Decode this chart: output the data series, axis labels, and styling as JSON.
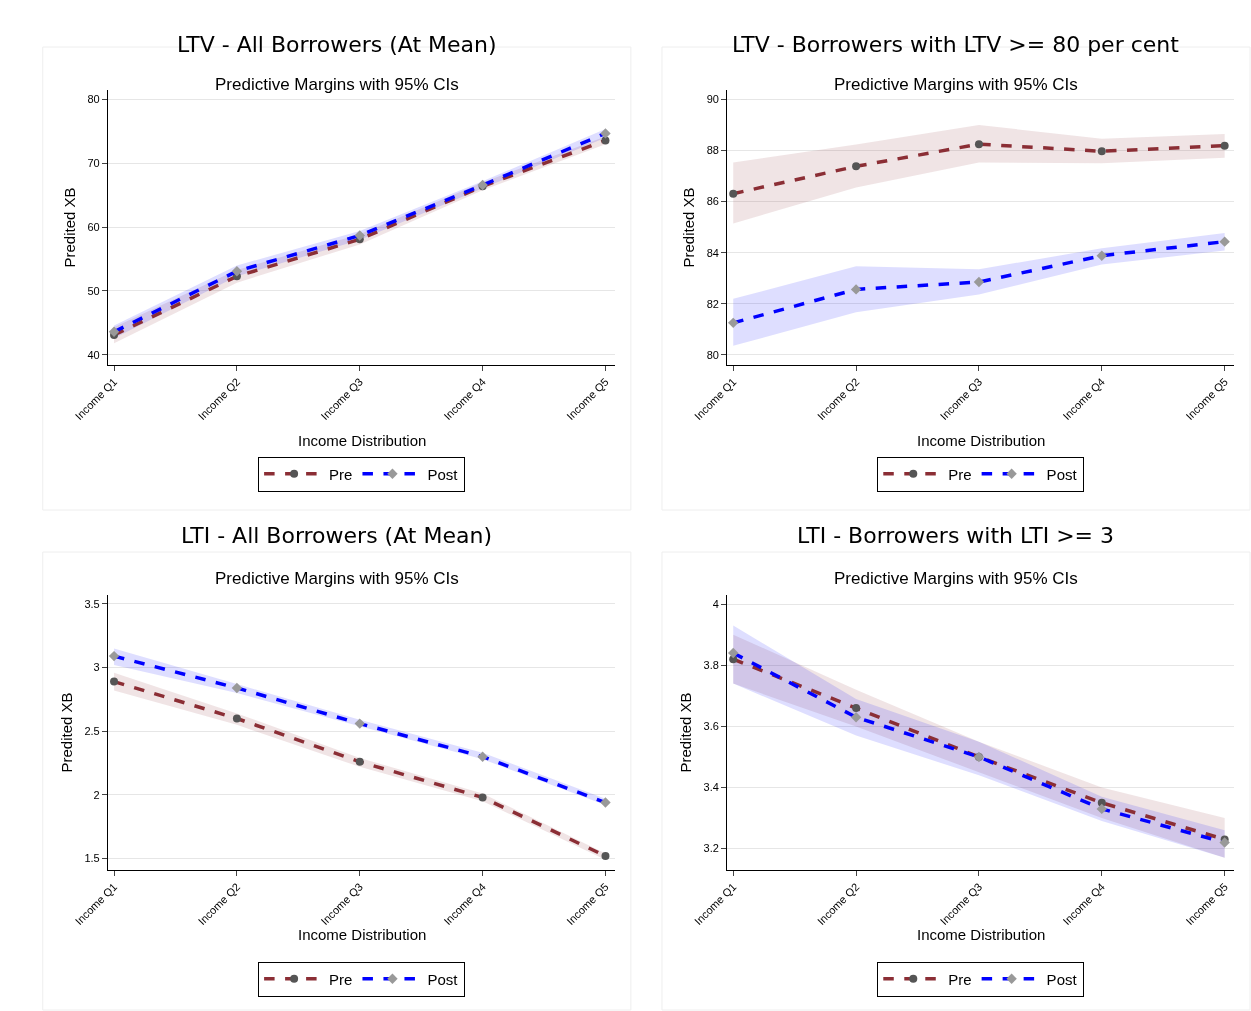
{
  "chart_data": [
    {
      "type": "line",
      "title": "LTV - All Borrowers (At Mean)",
      "subtitle": "Predictive Margins with 95% CIs",
      "xlabel": "Income Distribution",
      "ylabel": "Predited XB",
      "categories": [
        "Income Q1",
        "Income Q2",
        "Income Q3",
        "Income Q4",
        "Income Q5"
      ],
      "series": [
        {
          "name": "Pre",
          "color": "#8b2e35",
          "marker": "circle",
          "values": [
            43.1,
            52.3,
            58.1,
            66.4,
            73.6
          ],
          "lower": [
            41.8,
            51.3,
            57.3,
            65.8,
            73.0
          ],
          "upper": [
            44.3,
            53.3,
            58.9,
            67.0,
            74.2
          ]
        },
        {
          "name": "Post",
          "color": "#0000ff",
          "marker": "diamond",
          "values": [
            43.6,
            53.1,
            58.7,
            66.6,
            74.7
          ],
          "lower": [
            42.6,
            52.3,
            58.0,
            66.1,
            74.0
          ],
          "upper": [
            44.6,
            54.0,
            59.4,
            67.2,
            75.4
          ]
        }
      ],
      "ylim": [
        38.4,
        81.5
      ],
      "yticks": [
        40,
        50,
        60,
        70,
        80
      ],
      "grid": "y",
      "legend": "bottom",
      "line_style": "dashed"
    },
    {
      "type": "line",
      "title": "LTV - Borrowers with LTV >= 80 per cent",
      "subtitle": "Predictive Margins with 95% CIs",
      "xlabel": "Income Distribution",
      "ylabel": "Predited XB",
      "categories": [
        "Income Q1",
        "Income Q2",
        "Income Q3",
        "Income Q4",
        "Income Q5"
      ],
      "series": [
        {
          "name": "Pre",
          "color": "#8b2e35",
          "marker": "circle",
          "values": [
            86.31,
            87.38,
            88.25,
            87.97,
            88.19
          ],
          "lower": [
            85.14,
            86.55,
            87.53,
            87.5,
            87.72
          ],
          "upper": [
            87.53,
            88.24,
            89.0,
            88.46,
            88.65
          ]
        },
        {
          "name": "Post",
          "color": "#0000ff",
          "marker": "diamond",
          "values": [
            81.25,
            82.56,
            82.85,
            83.88,
            84.43
          ],
          "lower": [
            80.35,
            81.67,
            82.36,
            83.54,
            84.08
          ],
          "upper": [
            82.19,
            83.47,
            83.35,
            84.17,
            84.77
          ]
        }
      ],
      "ylim": [
        79.6,
        90.37
      ],
      "yticks": [
        80,
        82,
        84,
        86,
        88,
        90
      ],
      "grid": "y",
      "legend": "bottom",
      "line_style": "dashed"
    },
    {
      "type": "line",
      "title": "LTI - All Borrowers (At Mean)",
      "subtitle": "Predictive Margins with 95% CIs",
      "xlabel": "Income Distribution",
      "ylabel": "Predited XB",
      "categories": [
        "Income Q1",
        "Income Q2",
        "Income Q3",
        "Income Q4",
        "Income Q5"
      ],
      "series": [
        {
          "name": "Pre",
          "color": "#8b2e35",
          "marker": "circle",
          "values": [
            2.89,
            2.6,
            2.26,
            1.98,
            1.52
          ],
          "lower": [
            2.82,
            2.55,
            2.22,
            1.95,
            1.49
          ],
          "upper": [
            2.96,
            2.64,
            2.29,
            2.01,
            1.54
          ]
        },
        {
          "name": "Post",
          "color": "#0000ff",
          "marker": "diamond",
          "values": [
            3.09,
            2.84,
            2.56,
            2.3,
            1.94
          ],
          "lower": [
            3.02,
            2.8,
            2.54,
            2.28,
            1.92
          ],
          "upper": [
            3.15,
            2.87,
            2.59,
            2.33,
            1.97
          ]
        }
      ],
      "ylim": [
        1.41,
        3.57
      ],
      "yticks": [
        1.5,
        2,
        2.5,
        3,
        3.5
      ],
      "grid": "y",
      "legend": "bottom",
      "line_style": "dashed"
    },
    {
      "type": "line",
      "title": "LTI - Borrowers with LTI >= 3",
      "subtitle": "Predictive Margins with 95% CIs",
      "xlabel": "Income Distribution",
      "ylabel": "Predited XB",
      "categories": [
        "Income Q1",
        "Income Q2",
        "Income Q3",
        "Income Q4",
        "Income Q5"
      ],
      "series": [
        {
          "name": "Pre",
          "color": "#8b2e35",
          "marker": "circle",
          "values": [
            3.82,
            3.66,
            3.5,
            3.35,
            3.23
          ],
          "lower": [
            3.74,
            3.6,
            3.45,
            3.3,
            3.17
          ],
          "upper": [
            3.9,
            3.72,
            3.55,
            3.4,
            3.3
          ]
        },
        {
          "name": "Post",
          "color": "#0000ff",
          "marker": "diamond",
          "values": [
            3.84,
            3.63,
            3.5,
            3.33,
            3.22
          ],
          "lower": [
            3.74,
            3.57,
            3.44,
            3.29,
            3.17
          ],
          "upper": [
            3.93,
            3.69,
            3.55,
            3.37,
            3.26
          ]
        }
      ],
      "ylim": [
        3.13,
        4.03
      ],
      "yticks": [
        3.2,
        3.4,
        3.6,
        3.8,
        4
      ],
      "grid": "y",
      "legend": "bottom",
      "line_style": "dashed"
    }
  ]
}
